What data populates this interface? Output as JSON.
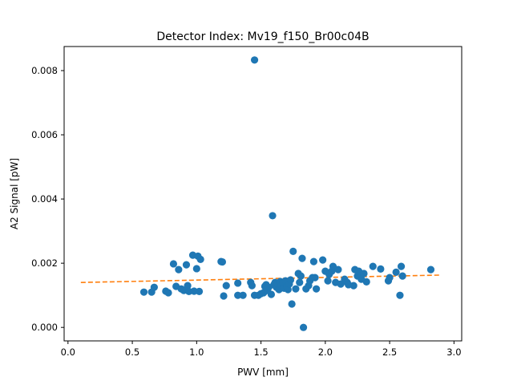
{
  "chart_data": {
    "type": "scatter",
    "title": "Detector Index: Mv19_f150_Br00c04B",
    "xlabel": "PWV [mm]",
    "ylabel": "A2 Signal [pW]",
    "xlim": [
      -0.03,
      3.06
    ],
    "ylim": [
      -0.00042,
      0.00875
    ],
    "x_ticks": [
      {
        "value": 0.0,
        "label": "0.0"
      },
      {
        "value": 0.5,
        "label": "0.5"
      },
      {
        "value": 1.0,
        "label": "1.0"
      },
      {
        "value": 1.5,
        "label": "1.5"
      },
      {
        "value": 2.0,
        "label": "2.0"
      },
      {
        "value": 2.5,
        "label": "2.5"
      },
      {
        "value": 3.0,
        "label": "3.0"
      }
    ],
    "y_ticks": [
      {
        "value": 0.0,
        "label": "0.000"
      },
      {
        "value": 0.002,
        "label": "0.002"
      },
      {
        "value": 0.004,
        "label": "0.004"
      },
      {
        "value": 0.006,
        "label": "0.006"
      },
      {
        "value": 0.008,
        "label": "0.008"
      }
    ],
    "colors": {
      "points": "#1f77b4",
      "fit": "#ff7f0e"
    },
    "fit_line": {
      "x": [
        0.1,
        2.9
      ],
      "y": [
        0.0014,
        0.00163
      ],
      "style": "dashed"
    },
    "points": [
      [
        0.59,
        0.0011
      ],
      [
        0.65,
        0.0011
      ],
      [
        0.67,
        0.00125
      ],
      [
        0.76,
        0.00113
      ],
      [
        0.78,
        0.00108
      ],
      [
        0.82,
        0.00198
      ],
      [
        0.84,
        0.00128
      ],
      [
        0.86,
        0.0018
      ],
      [
        0.88,
        0.0012
      ],
      [
        0.9,
        0.00115
      ],
      [
        0.92,
        0.00195
      ],
      [
        0.93,
        0.0013
      ],
      [
        0.94,
        0.00112
      ],
      [
        0.97,
        0.00225
      ],
      [
        0.98,
        0.00113
      ],
      [
        1.0,
        0.00183
      ],
      [
        1.01,
        0.00222
      ],
      [
        1.02,
        0.00112
      ],
      [
        1.03,
        0.00212
      ],
      [
        1.19,
        0.00205
      ],
      [
        1.2,
        0.00204
      ],
      [
        1.21,
        0.00098
      ],
      [
        1.23,
        0.0013
      ],
      [
        1.32,
        0.001
      ],
      [
        1.32,
        0.00138
      ],
      [
        1.36,
        0.001
      ],
      [
        1.42,
        0.0014
      ],
      [
        1.43,
        0.0013
      ],
      [
        1.45,
        0.00833
      ],
      [
        1.45,
        0.001
      ],
      [
        1.48,
        0.001
      ],
      [
        1.5,
        0.00105
      ],
      [
        1.52,
        0.00108
      ],
      [
        1.53,
        0.00128
      ],
      [
        1.54,
        0.00133
      ],
      [
        1.55,
        0.00115
      ],
      [
        1.56,
        0.00125
      ],
      [
        1.58,
        0.00103
      ],
      [
        1.59,
        0.00348
      ],
      [
        1.6,
        0.00133
      ],
      [
        1.61,
        0.0014
      ],
      [
        1.62,
        0.00125
      ],
      [
        1.63,
        0.00135
      ],
      [
        1.64,
        0.00118
      ],
      [
        1.65,
        0.00143
      ],
      [
        1.66,
        0.0013
      ],
      [
        1.67,
        0.0014
      ],
      [
        1.68,
        0.00122
      ],
      [
        1.69,
        0.00145
      ],
      [
        1.7,
        0.00128
      ],
      [
        1.71,
        0.00118
      ],
      [
        1.72,
        0.00135
      ],
      [
        1.73,
        0.00148
      ],
      [
        1.74,
        0.00073
      ],
      [
        1.75,
        0.00237
      ],
      [
        1.77,
        0.0012
      ],
      [
        1.79,
        0.00168
      ],
      [
        1.8,
        0.0014
      ],
      [
        1.81,
        0.0016
      ],
      [
        1.82,
        0.00215
      ],
      [
        1.83,
        0.0
      ],
      [
        1.85,
        0.0012
      ],
      [
        1.87,
        0.0013
      ],
      [
        1.88,
        0.00145
      ],
      [
        1.9,
        0.00155
      ],
      [
        1.91,
        0.00205
      ],
      [
        1.92,
        0.00155
      ],
      [
        1.93,
        0.0012
      ],
      [
        1.98,
        0.0021
      ],
      [
        2.0,
        0.00175
      ],
      [
        2.02,
        0.00145
      ],
      [
        2.03,
        0.00165
      ],
      [
        2.05,
        0.00175
      ],
      [
        2.06,
        0.0019
      ],
      [
        2.08,
        0.0014
      ],
      [
        2.1,
        0.0018
      ],
      [
        2.12,
        0.00135
      ],
      [
        2.15,
        0.0015
      ],
      [
        2.17,
        0.0014
      ],
      [
        2.18,
        0.00133
      ],
      [
        2.22,
        0.0013
      ],
      [
        2.23,
        0.0018
      ],
      [
        2.25,
        0.0016
      ],
      [
        2.26,
        0.00175
      ],
      [
        2.28,
        0.0015
      ],
      [
        2.3,
        0.00168
      ],
      [
        2.32,
        0.00142
      ],
      [
        2.37,
        0.0019
      ],
      [
        2.43,
        0.00182
      ],
      [
        2.49,
        0.00145
      ],
      [
        2.5,
        0.00155
      ],
      [
        2.55,
        0.00172
      ],
      [
        2.58,
        0.001
      ],
      [
        2.59,
        0.0019
      ],
      [
        2.6,
        0.0016
      ],
      [
        2.82,
        0.0018
      ]
    ]
  }
}
